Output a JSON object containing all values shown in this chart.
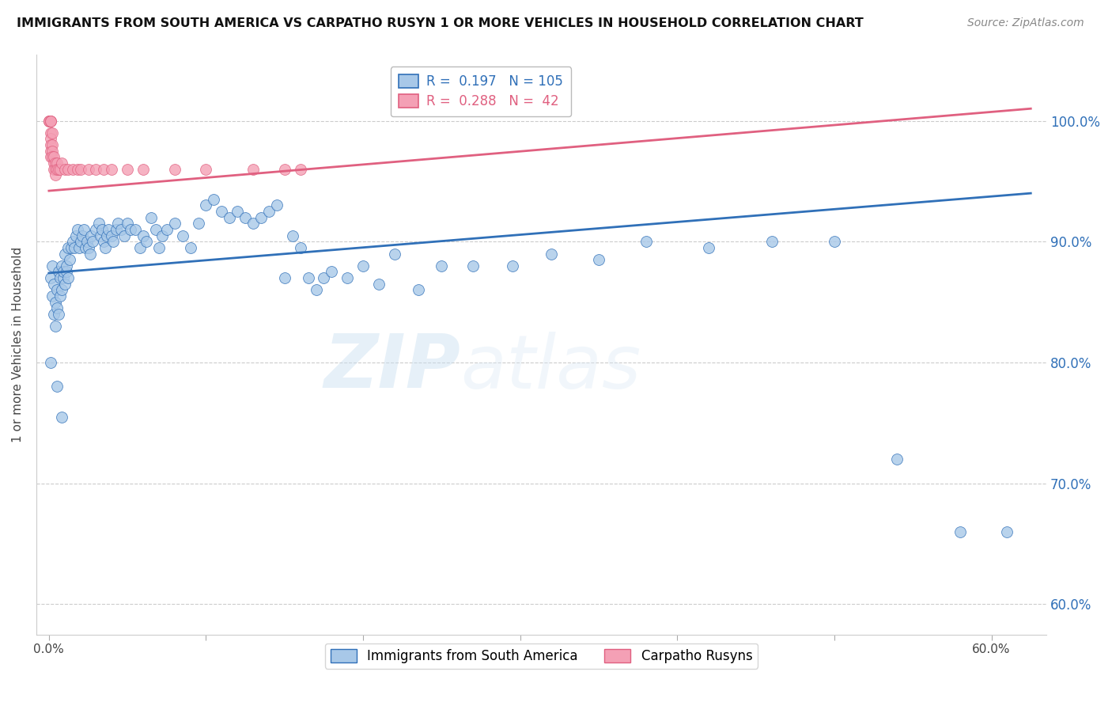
{
  "title": "IMMIGRANTS FROM SOUTH AMERICA VS CARPATHO RUSYN 1 OR MORE VEHICLES IN HOUSEHOLD CORRELATION CHART",
  "source": "Source: ZipAtlas.com",
  "ylabel": "1 or more Vehicles in Household",
  "x_ticks": [
    0.0,
    0.1,
    0.2,
    0.3,
    0.4,
    0.5,
    0.6
  ],
  "x_tick_labels": [
    "0.0%",
    "",
    "",
    "",
    "",
    "",
    "60.0%"
  ],
  "y_ticks": [
    0.6,
    0.7,
    0.8,
    0.9,
    1.0
  ],
  "y_tick_labels": [
    "60.0%",
    "70.0%",
    "80.0%",
    "90.0%",
    "100.0%"
  ],
  "xlim": [
    -0.008,
    0.635
  ],
  "ylim": [
    0.575,
    1.055
  ],
  "blue_R": 0.197,
  "blue_N": 105,
  "pink_R": 0.288,
  "pink_N": 42,
  "blue_color": "#a8c8e8",
  "pink_color": "#f4a0b5",
  "blue_line_color": "#3070b8",
  "pink_line_color": "#e06080",
  "legend_label_blue": "Immigrants from South America",
  "legend_label_pink": "Carpatho Rusyns",
  "watermark": "ZIPatlas",
  "blue_scatter_x": [
    0.001,
    0.002,
    0.002,
    0.003,
    0.003,
    0.004,
    0.004,
    0.005,
    0.005,
    0.006,
    0.006,
    0.007,
    0.007,
    0.008,
    0.008,
    0.009,
    0.009,
    0.01,
    0.01,
    0.011,
    0.011,
    0.012,
    0.012,
    0.013,
    0.014,
    0.015,
    0.016,
    0.017,
    0.018,
    0.019,
    0.02,
    0.021,
    0.022,
    0.023,
    0.024,
    0.025,
    0.026,
    0.027,
    0.028,
    0.03,
    0.032,
    0.033,
    0.034,
    0.035,
    0.036,
    0.037,
    0.038,
    0.04,
    0.041,
    0.043,
    0.044,
    0.046,
    0.048,
    0.05,
    0.052,
    0.055,
    0.058,
    0.06,
    0.062,
    0.065,
    0.068,
    0.07,
    0.072,
    0.075,
    0.08,
    0.085,
    0.09,
    0.095,
    0.1,
    0.105,
    0.11,
    0.115,
    0.12,
    0.125,
    0.13,
    0.135,
    0.14,
    0.145,
    0.15,
    0.155,
    0.16,
    0.165,
    0.17,
    0.175,
    0.18,
    0.19,
    0.2,
    0.21,
    0.22,
    0.235,
    0.25,
    0.27,
    0.295,
    0.32,
    0.35,
    0.38,
    0.42,
    0.46,
    0.5,
    0.54,
    0.58,
    0.61,
    0.001,
    0.005,
    0.008
  ],
  "blue_scatter_y": [
    0.87,
    0.88,
    0.855,
    0.865,
    0.84,
    0.85,
    0.83,
    0.845,
    0.86,
    0.875,
    0.84,
    0.855,
    0.87,
    0.88,
    0.86,
    0.87,
    0.875,
    0.89,
    0.865,
    0.875,
    0.88,
    0.895,
    0.87,
    0.885,
    0.895,
    0.9,
    0.895,
    0.905,
    0.91,
    0.895,
    0.9,
    0.905,
    0.91,
    0.895,
    0.9,
    0.895,
    0.89,
    0.905,
    0.9,
    0.91,
    0.915,
    0.905,
    0.91,
    0.9,
    0.895,
    0.905,
    0.91,
    0.905,
    0.9,
    0.91,
    0.915,
    0.91,
    0.905,
    0.915,
    0.91,
    0.91,
    0.895,
    0.905,
    0.9,
    0.92,
    0.91,
    0.895,
    0.905,
    0.91,
    0.915,
    0.905,
    0.895,
    0.915,
    0.93,
    0.935,
    0.925,
    0.92,
    0.925,
    0.92,
    0.915,
    0.92,
    0.925,
    0.93,
    0.87,
    0.905,
    0.895,
    0.87,
    0.86,
    0.87,
    0.875,
    0.87,
    0.88,
    0.865,
    0.89,
    0.86,
    0.88,
    0.88,
    0.88,
    0.89,
    0.885,
    0.9,
    0.895,
    0.9,
    0.9,
    0.72,
    0.66,
    0.66,
    0.8,
    0.78,
    0.755
  ],
  "pink_scatter_x": [
    0.0,
    0.0,
    0.0,
    0.001,
    0.001,
    0.001,
    0.001,
    0.001,
    0.001,
    0.001,
    0.001,
    0.002,
    0.002,
    0.002,
    0.002,
    0.003,
    0.003,
    0.003,
    0.004,
    0.004,
    0.004,
    0.005,
    0.005,
    0.006,
    0.007,
    0.008,
    0.01,
    0.012,
    0.015,
    0.018,
    0.02,
    0.025,
    0.03,
    0.035,
    0.04,
    0.05,
    0.06,
    0.08,
    0.1,
    0.13,
    0.15,
    0.16
  ],
  "pink_scatter_y": [
    1.0,
    1.0,
    1.0,
    1.0,
    1.0,
    1.0,
    0.99,
    0.985,
    0.98,
    0.975,
    0.97,
    0.99,
    0.98,
    0.975,
    0.97,
    0.965,
    0.96,
    0.97,
    0.965,
    0.96,
    0.955,
    0.965,
    0.96,
    0.96,
    0.96,
    0.965,
    0.96,
    0.96,
    0.96,
    0.96,
    0.96,
    0.96,
    0.96,
    0.96,
    0.96,
    0.96,
    0.96,
    0.96,
    0.96,
    0.96,
    0.96,
    0.96
  ],
  "blue_line_x0": 0.0,
  "blue_line_x1": 0.625,
  "blue_line_y0": 0.874,
  "blue_line_y1": 0.94,
  "pink_line_x0": 0.0,
  "pink_line_x1": 0.625,
  "pink_line_y0": 0.942,
  "pink_line_y1": 1.01
}
